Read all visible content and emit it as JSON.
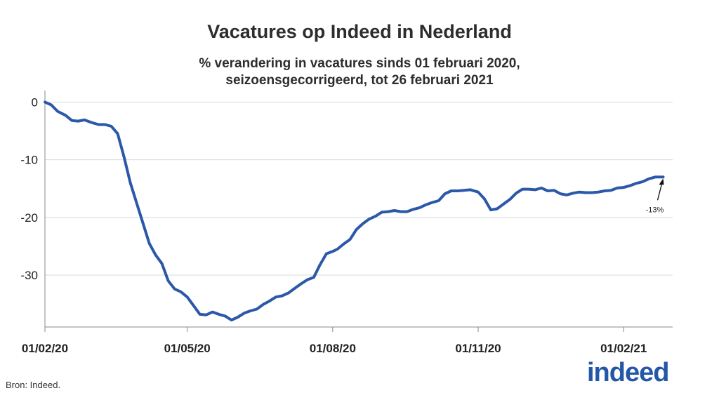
{
  "chart_data": {
    "type": "line",
    "title": "Vacatures op Indeed in Nederland",
    "subtitle_lines": [
      "% verandering in vacatures sinds 01 februari 2020,",
      "seizoensgecorrigeerd, tot 26 februari 2021"
    ],
    "xlabel": "",
    "ylabel": "",
    "x_tick_labels": [
      "01/02/20",
      "01/05/20",
      "01/08/20",
      "01/11/20",
      "01/02/21"
    ],
    "x_tick_dates": [
      "2020-02-01",
      "2020-05-01",
      "2020-08-01",
      "2020-11-01",
      "2021-02-01"
    ],
    "y_ticks": [
      0,
      -10,
      -20,
      -30
    ],
    "ylim": [
      -39,
      2
    ],
    "xlim": [
      "2020-02-01",
      "2021-03-04"
    ],
    "grid": "horizontal",
    "line_color": "#2b58a8",
    "annotation": {
      "text": "-13%",
      "x": "2021-02-26",
      "y": -13
    },
    "series": [
      {
        "x": [
          "2020-02-01",
          "2020-02-05",
          "2020-02-09",
          "2020-02-14",
          "2020-02-18",
          "2020-02-22",
          "2020-02-26",
          "2020-03-02",
          "2020-03-06",
          "2020-03-10",
          "2020-03-14",
          "2020-03-18",
          "2020-03-22",
          "2020-03-26",
          "2020-03-30",
          "2020-04-03",
          "2020-04-07",
          "2020-04-11",
          "2020-04-15",
          "2020-04-19",
          "2020-04-23",
          "2020-04-27",
          "2020-05-01",
          "2020-05-05",
          "2020-05-09",
          "2020-05-13",
          "2020-05-17",
          "2020-05-21",
          "2020-05-25",
          "2020-05-29",
          "2020-06-02",
          "2020-06-06",
          "2020-06-10",
          "2020-06-14",
          "2020-06-18",
          "2020-06-22",
          "2020-06-26",
          "2020-06-30",
          "2020-07-04",
          "2020-07-08",
          "2020-07-12",
          "2020-07-16",
          "2020-07-20",
          "2020-07-24",
          "2020-07-28",
          "2020-08-01",
          "2020-08-04",
          "2020-08-08",
          "2020-08-12",
          "2020-08-16",
          "2020-08-20",
          "2020-08-24",
          "2020-08-28",
          "2020-09-01",
          "2020-09-05",
          "2020-09-09",
          "2020-09-13",
          "2020-09-17",
          "2020-09-21",
          "2020-09-25",
          "2020-09-29",
          "2020-10-03",
          "2020-10-07",
          "2020-10-11",
          "2020-10-15",
          "2020-10-19",
          "2020-10-23",
          "2020-10-27",
          "2020-11-01",
          "2020-11-05",
          "2020-11-09",
          "2020-11-13",
          "2020-11-17",
          "2020-11-21",
          "2020-11-25",
          "2020-11-29",
          "2020-12-03",
          "2020-12-07",
          "2020-12-11",
          "2020-12-15",
          "2020-12-19",
          "2020-12-23",
          "2020-12-27",
          "2020-12-31",
          "2021-01-04",
          "2021-01-08",
          "2021-01-12",
          "2021-01-16",
          "2021-01-20",
          "2021-01-24",
          "2021-01-28",
          "2021-02-01",
          "2021-02-05",
          "2021-02-09",
          "2021-02-13",
          "2021-02-17",
          "2021-02-21",
          "2021-02-24",
          "2021-02-26"
        ],
        "y": [
          0,
          -0.5,
          -1.6,
          -2.3,
          -3.2,
          -3.3,
          -3.1,
          -3.6,
          -3.9,
          -3.9,
          -4.2,
          -5.5,
          -9.5,
          -14,
          -17.5,
          -21,
          -24.5,
          -26.5,
          -28,
          -31,
          -32.4,
          -32.9,
          -33.8,
          -35.3,
          -36.8,
          -36.9,
          -36.4,
          -36.8,
          -37.1,
          -37.8,
          -37.3,
          -36.6,
          -36.2,
          -35.9,
          -35.1,
          -34.5,
          -33.8,
          -33.6,
          -33.1,
          -32.3,
          -31.5,
          -30.8,
          -30.4,
          -28.2,
          -26.3,
          -25.9,
          -25.5,
          -24.6,
          -23.8,
          -22.1,
          -21.1,
          -20.3,
          -19.8,
          -19.1,
          -19.0,
          -18.8,
          -19.0,
          -19.0,
          -18.6,
          -18.3,
          -17.8,
          -17.4,
          -17.1,
          -15.9,
          -15.4,
          -15.4,
          -15.3,
          -15.2,
          -15.6,
          -16.8,
          -18.7,
          -18.5,
          -17.7,
          -16.9,
          -15.8,
          -15.1,
          -15.1,
          -15.2,
          -14.9,
          -15.4,
          -15.3,
          -15.9,
          -16.1,
          -15.8,
          -15.6,
          -15.7,
          -15.7,
          -15.6,
          -15.4,
          -15.3,
          -14.9,
          -14.8,
          -14.5,
          -14.1,
          -13.8,
          -13.3,
          -13.0,
          -13.0,
          -13.0
        ]
      }
    ]
  },
  "source_text": "Bron: Indeed.",
  "logo_text": "indeed"
}
